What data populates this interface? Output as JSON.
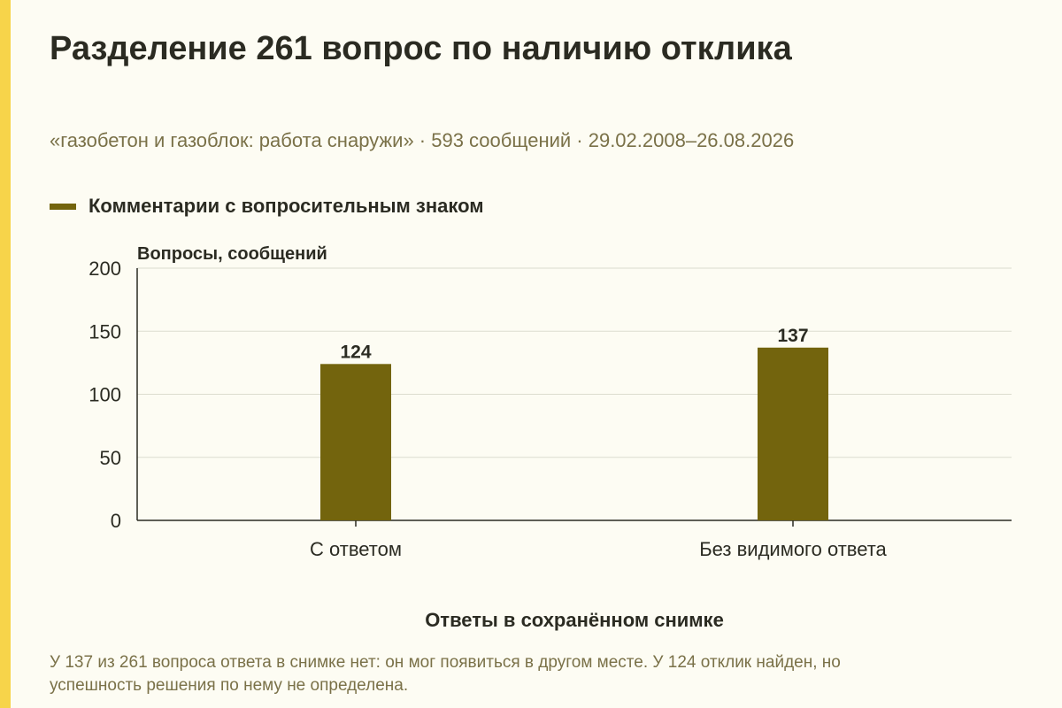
{
  "title": "Разделение 261 вопрос по наличию отклика",
  "subtitle": "«газобетон и газоблок: работа снаружи» · 593 сообщений · 29.02.2008–26.08.2026",
  "note": "У 137 из 261 вопроса ответа в снимке нет: он мог появиться в другом месте. У 124 отклик найден, но успешность решения по нему не определена.",
  "colors": {
    "background": "#fdfcf3",
    "accent": "#f7d44a",
    "bar": "#73640d",
    "text": "#2b2b22",
    "muted": "#7a7148"
  },
  "chart_data": {
    "type": "bar",
    "title": "Разделение 261 вопрос по наличию отклика",
    "xlabel": "Ответы в сохранённом снимке",
    "ylabel": "Вопросы, сообщений",
    "categories": [
      "С ответом",
      "Без видимого ответа"
    ],
    "series": [
      {
        "name": "Комментарии с вопросительным знаком",
        "values": [
          124,
          137
        ]
      }
    ],
    "ylim": [
      0,
      200
    ],
    "yticks": [
      0,
      50,
      100,
      150,
      200
    ],
    "grid": true,
    "legend": "top-left",
    "data_labels": true
  }
}
